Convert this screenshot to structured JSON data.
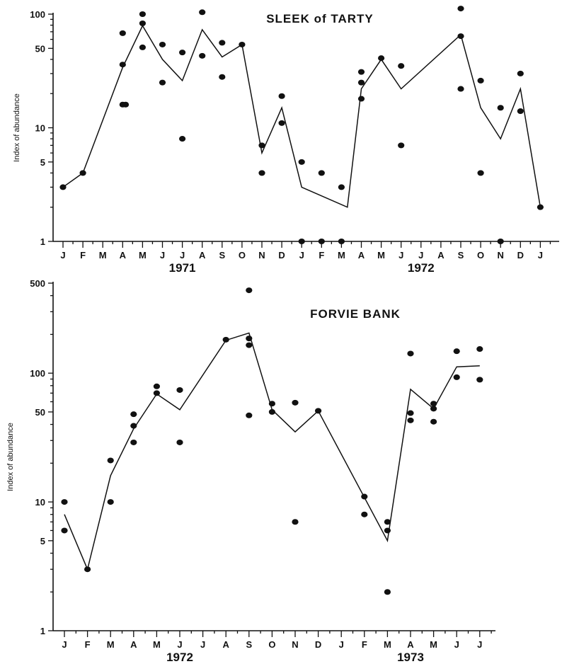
{
  "chart_data": [
    {
      "type": "scatter",
      "title": "SLEEK of TARTY",
      "ylabel": "Index of abundance",
      "yscale": "log",
      "ylim": [
        1,
        100
      ],
      "yticks": [
        1,
        5,
        10,
        50,
        100
      ],
      "months": [
        "J",
        "F",
        "M",
        "A",
        "M",
        "J",
        "J",
        "A",
        "S",
        "O",
        "N",
        "D",
        "J",
        "F",
        "M",
        "A",
        "M",
        "J",
        "J",
        "A",
        "S",
        "O",
        "N",
        "D",
        "J"
      ],
      "years": [
        {
          "label": "1971",
          "month_index": 6
        },
        {
          "label": "1972",
          "month_index": 18
        }
      ],
      "points": [
        [
          0,
          3
        ],
        [
          1,
          4
        ],
        [
          3,
          68
        ],
        [
          3,
          36
        ],
        [
          3,
          16
        ],
        [
          3.15,
          16
        ],
        [
          4,
          100
        ],
        [
          4,
          83
        ],
        [
          4,
          51
        ],
        [
          5,
          54
        ],
        [
          5,
          25
        ],
        [
          6,
          46
        ],
        [
          6,
          8
        ],
        [
          7,
          104
        ],
        [
          7,
          43
        ],
        [
          8,
          56
        ],
        [
          8,
          28
        ],
        [
          9,
          54
        ],
        [
          10,
          7
        ],
        [
          10,
          4
        ],
        [
          11,
          19
        ],
        [
          11,
          11
        ],
        [
          12,
          5
        ],
        [
          12,
          1
        ],
        [
          13,
          4
        ],
        [
          13,
          1
        ],
        [
          14,
          3
        ],
        [
          14,
          1
        ],
        [
          15,
          31
        ],
        [
          15,
          25
        ],
        [
          15,
          18
        ],
        [
          16,
          41
        ],
        [
          17,
          35
        ],
        [
          17,
          7
        ],
        [
          20,
          112
        ],
        [
          20,
          64
        ],
        [
          20,
          22
        ],
        [
          21,
          26
        ],
        [
          21,
          4
        ],
        [
          22,
          15
        ],
        [
          22,
          1
        ],
        [
          23,
          30
        ],
        [
          23,
          14
        ],
        [
          24,
          2
        ]
      ],
      "line": [
        [
          0,
          3
        ],
        [
          1,
          4
        ],
        [
          3,
          34
        ],
        [
          4,
          79
        ],
        [
          5,
          40
        ],
        [
          6,
          26
        ],
        [
          7,
          73
        ],
        [
          8,
          42
        ],
        [
          9,
          54
        ],
        [
          10,
          6
        ],
        [
          11,
          15
        ],
        [
          12,
          3
        ],
        [
          14.3,
          2
        ],
        [
          15,
          22
        ],
        [
          16,
          40
        ],
        [
          17,
          22
        ],
        [
          20,
          66
        ],
        [
          21,
          15
        ],
        [
          22,
          8
        ],
        [
          23,
          22
        ],
        [
          24,
          2
        ]
      ]
    },
    {
      "type": "scatter",
      "title": "FORVIE BANK",
      "ylabel": "Index of abundance",
      "yscale": "log",
      "ylim": [
        1,
        500
      ],
      "yticks": [
        1,
        5,
        10,
        50,
        100,
        500
      ],
      "months": [
        "J",
        "F",
        "M",
        "A",
        "M",
        "J",
        "J",
        "A",
        "S",
        "O",
        "N",
        "D",
        "J",
        "F",
        "M",
        "A",
        "M",
        "J",
        "J"
      ],
      "years": [
        {
          "label": "1972",
          "month_index": 5
        },
        {
          "label": "1973",
          "month_index": 15
        }
      ],
      "points": [
        [
          0,
          10
        ],
        [
          0,
          6
        ],
        [
          1,
          3
        ],
        [
          2,
          21
        ],
        [
          2,
          10
        ],
        [
          3,
          48
        ],
        [
          3,
          39
        ],
        [
          3,
          29
        ],
        [
          4,
          79
        ],
        [
          4,
          70
        ],
        [
          5,
          74
        ],
        [
          5,
          29
        ],
        [
          7,
          182
        ],
        [
          8,
          440
        ],
        [
          8,
          186
        ],
        [
          8,
          165
        ],
        [
          8,
          47
        ],
        [
          9,
          58
        ],
        [
          9,
          50
        ],
        [
          10,
          59
        ],
        [
          10,
          7
        ],
        [
          11,
          51
        ],
        [
          13,
          11
        ],
        [
          13,
          8
        ],
        [
          14,
          7
        ],
        [
          14,
          6
        ],
        [
          14,
          2
        ],
        [
          15,
          142
        ],
        [
          15,
          49
        ],
        [
          15,
          43
        ],
        [
          16,
          58
        ],
        [
          16,
          53
        ],
        [
          16,
          42
        ],
        [
          17,
          148
        ],
        [
          17,
          93
        ],
        [
          18,
          154
        ],
        [
          18,
          89
        ]
      ],
      "line": [
        [
          0,
          8
        ],
        [
          1,
          3
        ],
        [
          2,
          16
        ],
        [
          3,
          37
        ],
        [
          4,
          69
        ],
        [
          5,
          52
        ],
        [
          7,
          180
        ],
        [
          8,
          205
        ],
        [
          9,
          52
        ],
        [
          10,
          35
        ],
        [
          11,
          51
        ],
        [
          14,
          5
        ],
        [
          15,
          75
        ],
        [
          16,
          53
        ],
        [
          17,
          112
        ],
        [
          18,
          114
        ]
      ]
    }
  ]
}
